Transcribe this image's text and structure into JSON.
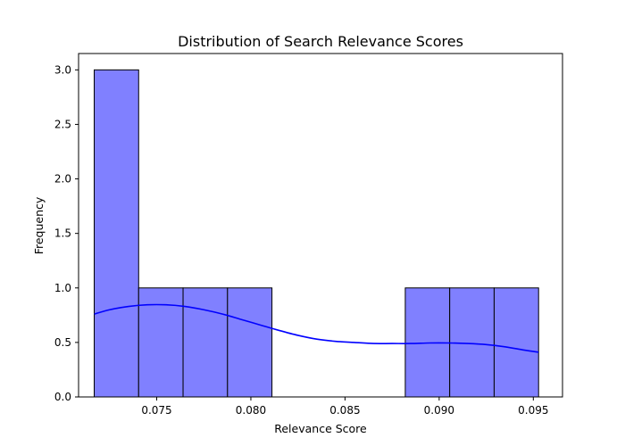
{
  "chart_data": {
    "type": "bar",
    "subtype": "histogram-with-kde",
    "title": "Distribution of Search Relevance Scores",
    "xlabel": "Relevance Score",
    "ylabel": "Frequency",
    "xlim": [
      0.07085,
      0.09655
    ],
    "ylim": [
      0,
      3.15
    ],
    "xticks": [
      0.075,
      0.08,
      0.085,
      0.09,
      0.095
    ],
    "xtick_labels": [
      "0.075",
      "0.080",
      "0.085",
      "0.090",
      "0.095"
    ],
    "yticks": [
      0,
      0.5,
      1,
      1.5,
      2,
      2.5,
      3
    ],
    "ytick_labels": [
      "0.0",
      "0.5",
      "1.0",
      "1.5",
      "2.0",
      "2.5",
      "3.0"
    ],
    "bins": [
      {
        "x0": 0.07168,
        "x1": 0.07404,
        "count": 3
      },
      {
        "x0": 0.07404,
        "x1": 0.0764,
        "count": 1
      },
      {
        "x0": 0.0764,
        "x1": 0.07876,
        "count": 1
      },
      {
        "x0": 0.07876,
        "x1": 0.08112,
        "count": 1
      },
      {
        "x0": 0.08112,
        "x1": 0.08348,
        "count": 0
      },
      {
        "x0": 0.08348,
        "x1": 0.08584,
        "count": 0
      },
      {
        "x0": 0.08584,
        "x1": 0.0882,
        "count": 0
      },
      {
        "x0": 0.0882,
        "x1": 0.09056,
        "count": 1
      },
      {
        "x0": 0.09056,
        "x1": 0.09292,
        "count": 1
      },
      {
        "x0": 0.09292,
        "x1": 0.09528,
        "count": 1
      }
    ],
    "kde": {
      "x": [
        0.07168,
        0.0725,
        0.0735,
        0.0745,
        0.0755,
        0.0765,
        0.0775,
        0.0785,
        0.0795,
        0.0805,
        0.0815,
        0.0825,
        0.0835,
        0.0845,
        0.0855,
        0.0865,
        0.0875,
        0.0885,
        0.0895,
        0.0905,
        0.0915,
        0.0925,
        0.0935,
        0.0945,
        0.09528
      ],
      "y": [
        0.76,
        0.8,
        0.83,
        0.845,
        0.845,
        0.83,
        0.8,
        0.76,
        0.71,
        0.66,
        0.61,
        0.565,
        0.53,
        0.51,
        0.5,
        0.49,
        0.49,
        0.49,
        0.495,
        0.495,
        0.49,
        0.48,
        0.46,
        0.43,
        0.41
      ]
    },
    "colors": {
      "bar_fill": "#8080ff",
      "bar_edge": "#000000",
      "kde_line": "#0000ff"
    },
    "grid": false,
    "legend": "none"
  }
}
